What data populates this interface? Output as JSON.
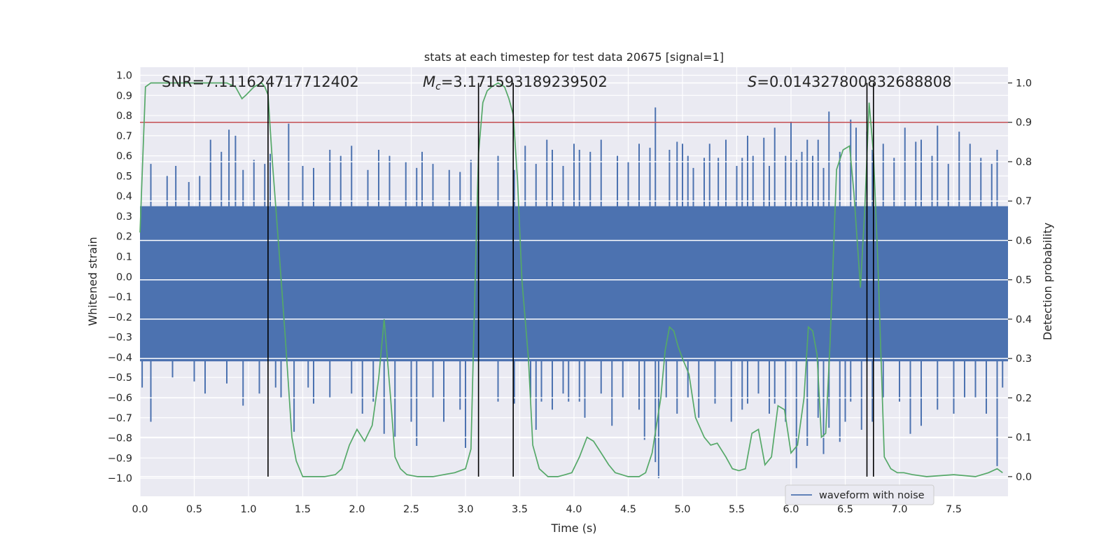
{
  "chart_data": {
    "type": "line",
    "title": "stats at each timestep for test data 20675 [signal=1]",
    "xlabel": "Time (s)",
    "ylabel": "Whitened strain",
    "y2label": "Detection probability",
    "xlim": [
      0.0,
      8.0
    ],
    "ylim": [
      -1.09,
      1.04
    ],
    "y2lim": [
      -0.05,
      1.04
    ],
    "x_ticks": [
      0.0,
      0.5,
      1.0,
      1.5,
      2.0,
      2.5,
      3.0,
      3.5,
      4.0,
      4.5,
      5.0,
      5.5,
      6.0,
      6.5,
      7.0,
      7.5
    ],
    "y_ticks": [
      -1.0,
      -0.9,
      -0.8,
      -0.7,
      -0.6,
      -0.5,
      -0.4,
      -0.3,
      -0.2,
      -0.1,
      0.0,
      0.1,
      0.2,
      0.3,
      0.4,
      0.5,
      0.6,
      0.7,
      0.8,
      0.9,
      1.0
    ],
    "y2_ticks": [
      0.0,
      0.1,
      0.2,
      0.3,
      0.4,
      0.5,
      0.6,
      0.7,
      0.8,
      0.9,
      1.0
    ],
    "annotations": {
      "snr": "SNR=7.111624717712402",
      "mc_symbol": "M",
      "mc_sub": "c",
      "mc_value": "=3.171593189239502",
      "s_symbol": "S",
      "s_value": "=0.014327800832688808"
    },
    "threshold_line": {
      "axis": "y2",
      "value": 0.9,
      "color": "#c44e52"
    },
    "vertical_markers": [
      1.18,
      3.12,
      3.44,
      6.7,
      6.76
    ],
    "series": [
      {
        "name": "waveform with noise",
        "axis": "y",
        "color": "#4c72b0",
        "noise_band": [
          -0.42,
          0.35
        ],
        "upper_spikes": [
          [
            0.1,
            0.56
          ],
          [
            0.25,
            0.5
          ],
          [
            0.33,
            0.55
          ],
          [
            0.45,
            0.47
          ],
          [
            0.55,
            0.5
          ],
          [
            0.65,
            0.68
          ],
          [
            0.75,
            0.62
          ],
          [
            0.82,
            0.73
          ],
          [
            0.88,
            0.7
          ],
          [
            0.95,
            0.53
          ],
          [
            1.05,
            0.58
          ],
          [
            1.15,
            0.56
          ],
          [
            1.2,
            0.61
          ],
          [
            1.37,
            0.76
          ],
          [
            1.5,
            0.55
          ],
          [
            1.6,
            0.54
          ],
          [
            1.75,
            0.63
          ],
          [
            1.85,
            0.6
          ],
          [
            1.95,
            0.65
          ],
          [
            2.1,
            0.53
          ],
          [
            2.2,
            0.63
          ],
          [
            2.3,
            0.6
          ],
          [
            2.45,
            0.57
          ],
          [
            2.55,
            0.54
          ],
          [
            2.6,
            0.62
          ],
          [
            2.7,
            0.56
          ],
          [
            2.85,
            0.53
          ],
          [
            2.95,
            0.52
          ],
          [
            3.05,
            0.58
          ],
          [
            3.3,
            0.6
          ],
          [
            3.45,
            0.53
          ],
          [
            3.55,
            0.65
          ],
          [
            3.65,
            0.56
          ],
          [
            3.75,
            0.68
          ],
          [
            3.8,
            0.63
          ],
          [
            3.9,
            0.55
          ],
          [
            4.0,
            0.66
          ],
          [
            4.05,
            0.63
          ],
          [
            4.15,
            0.62
          ],
          [
            4.25,
            0.68
          ],
          [
            4.4,
            0.6
          ],
          [
            4.5,
            0.57
          ],
          [
            4.6,
            0.66
          ],
          [
            4.7,
            0.64
          ],
          [
            4.75,
            0.84
          ],
          [
            4.88,
            0.63
          ],
          [
            4.95,
            0.67
          ],
          [
            5.0,
            0.66
          ],
          [
            5.05,
            0.6
          ],
          [
            5.1,
            0.54
          ],
          [
            5.2,
            0.59
          ],
          [
            5.25,
            0.66
          ],
          [
            5.33,
            0.59
          ],
          [
            5.4,
            0.68
          ],
          [
            5.5,
            0.55
          ],
          [
            5.55,
            0.59
          ],
          [
            5.6,
            0.7
          ],
          [
            5.65,
            0.6
          ],
          [
            5.75,
            0.69
          ],
          [
            5.8,
            0.55
          ],
          [
            5.85,
            0.74
          ],
          [
            5.95,
            0.6
          ],
          [
            6.0,
            0.77
          ],
          [
            6.05,
            0.58
          ],
          [
            6.1,
            0.62
          ],
          [
            6.15,
            0.68
          ],
          [
            6.2,
            0.6
          ],
          [
            6.25,
            0.68
          ],
          [
            6.3,
            0.54
          ],
          [
            6.35,
            0.82
          ],
          [
            6.45,
            0.62
          ],
          [
            6.55,
            0.78
          ],
          [
            6.6,
            0.74
          ],
          [
            6.7,
            0.72
          ],
          [
            6.75,
            0.63
          ],
          [
            6.85,
            0.66
          ],
          [
            6.95,
            0.59
          ],
          [
            7.05,
            0.74
          ],
          [
            7.15,
            0.67
          ],
          [
            7.2,
            0.68
          ],
          [
            7.3,
            0.6
          ],
          [
            7.35,
            0.75
          ],
          [
            7.45,
            0.56
          ],
          [
            7.55,
            0.72
          ],
          [
            7.65,
            0.66
          ],
          [
            7.75,
            0.59
          ],
          [
            7.85,
            0.56
          ],
          [
            7.9,
            0.63
          ]
        ],
        "lower_spikes": [
          [
            0.02,
            -0.55
          ],
          [
            0.1,
            -0.72
          ],
          [
            0.3,
            -0.5
          ],
          [
            0.5,
            -0.52
          ],
          [
            0.6,
            -0.58
          ],
          [
            0.8,
            -0.53
          ],
          [
            0.95,
            -0.64
          ],
          [
            1.1,
            -0.58
          ],
          [
            1.25,
            -0.55
          ],
          [
            1.3,
            -0.6
          ],
          [
            1.42,
            -0.77
          ],
          [
            1.55,
            -0.55
          ],
          [
            1.6,
            -0.63
          ],
          [
            1.75,
            -0.6
          ],
          [
            1.95,
            -0.58
          ],
          [
            2.05,
            -0.68
          ],
          [
            2.15,
            -0.62
          ],
          [
            2.25,
            -0.78
          ],
          [
            2.35,
            -0.8
          ],
          [
            2.5,
            -0.72
          ],
          [
            2.55,
            -0.84
          ],
          [
            2.7,
            -0.6
          ],
          [
            2.8,
            -0.72
          ],
          [
            2.95,
            -0.66
          ],
          [
            3.0,
            -0.85
          ],
          [
            3.3,
            -0.62
          ],
          [
            3.45,
            -0.63
          ],
          [
            3.6,
            -0.6
          ],
          [
            3.65,
            -0.76
          ],
          [
            3.7,
            -0.62
          ],
          [
            3.8,
            -0.66
          ],
          [
            3.9,
            -0.58
          ],
          [
            3.95,
            -0.62
          ],
          [
            4.05,
            -0.62
          ],
          [
            4.1,
            -0.7
          ],
          [
            4.25,
            -0.58
          ],
          [
            4.35,
            -0.74
          ],
          [
            4.45,
            -0.6
          ],
          [
            4.6,
            -0.66
          ],
          [
            4.65,
            -0.81
          ],
          [
            4.75,
            -0.92
          ],
          [
            4.78,
            -1.0
          ],
          [
            4.85,
            -0.6
          ],
          [
            4.95,
            -0.68
          ],
          [
            5.05,
            -0.6
          ],
          [
            5.15,
            -0.7
          ],
          [
            5.3,
            -0.63
          ],
          [
            5.45,
            -0.72
          ],
          [
            5.55,
            -0.66
          ],
          [
            5.6,
            -0.63
          ],
          [
            5.7,
            -0.58
          ],
          [
            5.8,
            -0.68
          ],
          [
            5.85,
            -0.63
          ],
          [
            5.95,
            -0.72
          ],
          [
            6.05,
            -0.95
          ],
          [
            6.15,
            -0.84
          ],
          [
            6.25,
            -0.7
          ],
          [
            6.3,
            -0.88
          ],
          [
            6.35,
            -0.75
          ],
          [
            6.45,
            -0.82
          ],
          [
            6.5,
            -0.72
          ],
          [
            6.55,
            -0.62
          ],
          [
            6.65,
            -0.76
          ],
          [
            6.75,
            -0.72
          ],
          [
            6.85,
            -0.6
          ],
          [
            7.0,
            -0.62
          ],
          [
            7.1,
            -0.78
          ],
          [
            7.2,
            -0.74
          ],
          [
            7.35,
            -0.66
          ],
          [
            7.5,
            -0.68
          ],
          [
            7.6,
            -0.6
          ],
          [
            7.7,
            -0.6
          ],
          [
            7.8,
            -0.68
          ],
          [
            7.9,
            -0.94
          ],
          [
            7.95,
            -0.55
          ]
        ]
      },
      {
        "name": "detection probability",
        "axis": "y2",
        "color": "#55a868",
        "x": [
          0.0,
          0.05,
          0.1,
          0.2,
          0.4,
          0.6,
          0.8,
          0.88,
          0.94,
          0.98,
          1.05,
          1.12,
          1.15,
          1.18,
          1.22,
          1.28,
          1.34,
          1.4,
          1.44,
          1.5,
          1.6,
          1.7,
          1.8,
          1.86,
          1.93,
          2.0,
          2.07,
          2.14,
          2.2,
          2.25,
          2.31,
          2.35,
          2.4,
          2.46,
          2.56,
          2.7,
          2.8,
          2.9,
          3.0,
          3.05,
          3.08,
          3.12,
          3.16,
          3.2,
          3.24,
          3.3,
          3.36,
          3.4,
          3.44,
          3.48,
          3.52,
          3.58,
          3.62,
          3.68,
          3.76,
          3.85,
          3.92,
          3.98,
          4.05,
          4.12,
          4.18,
          4.25,
          4.32,
          4.38,
          4.44,
          4.5,
          4.6,
          4.66,
          4.72,
          4.8,
          4.84,
          4.88,
          4.92,
          4.96,
          5.0,
          5.06,
          5.12,
          5.2,
          5.26,
          5.32,
          5.4,
          5.46,
          5.52,
          5.58,
          5.64,
          5.7,
          5.76,
          5.82,
          5.88,
          5.94,
          6.0,
          6.06,
          6.12,
          6.16,
          6.2,
          6.24,
          6.28,
          6.32,
          6.36,
          6.42,
          6.48,
          6.54,
          6.58,
          6.64,
          6.68,
          6.72,
          6.76,
          6.8,
          6.86,
          6.92,
          6.98,
          7.04,
          7.12,
          7.25,
          7.5,
          7.7,
          7.82,
          7.9,
          7.95
        ],
        "values": [
          0.62,
          0.99,
          1.0,
          1.0,
          1.0,
          1.0,
          1.0,
          0.99,
          0.96,
          0.97,
          0.99,
          1.0,
          0.99,
          0.97,
          0.8,
          0.58,
          0.35,
          0.1,
          0.04,
          0.0,
          0.0,
          0.0,
          0.005,
          0.02,
          0.08,
          0.12,
          0.09,
          0.13,
          0.25,
          0.4,
          0.2,
          0.05,
          0.02,
          0.005,
          0.0,
          0.0,
          0.005,
          0.01,
          0.02,
          0.07,
          0.4,
          0.82,
          0.95,
          0.98,
          0.99,
          1.0,
          0.99,
          0.96,
          0.92,
          0.75,
          0.5,
          0.3,
          0.08,
          0.02,
          0.0,
          0.0,
          0.005,
          0.01,
          0.05,
          0.1,
          0.09,
          0.06,
          0.03,
          0.01,
          0.005,
          0.0,
          0.0,
          0.01,
          0.06,
          0.2,
          0.32,
          0.38,
          0.37,
          0.33,
          0.3,
          0.26,
          0.15,
          0.1,
          0.08,
          0.085,
          0.05,
          0.02,
          0.015,
          0.02,
          0.11,
          0.12,
          0.03,
          0.05,
          0.18,
          0.17,
          0.06,
          0.08,
          0.2,
          0.38,
          0.37,
          0.31,
          0.1,
          0.11,
          0.34,
          0.78,
          0.83,
          0.84,
          0.72,
          0.48,
          0.68,
          0.95,
          0.82,
          0.55,
          0.05,
          0.02,
          0.01,
          0.01,
          0.005,
          0.0,
          0.005,
          0.0,
          0.01,
          0.02,
          0.01
        ]
      }
    ],
    "legend": {
      "placement": "lower-center",
      "entries": [
        "waveform with noise"
      ]
    }
  }
}
